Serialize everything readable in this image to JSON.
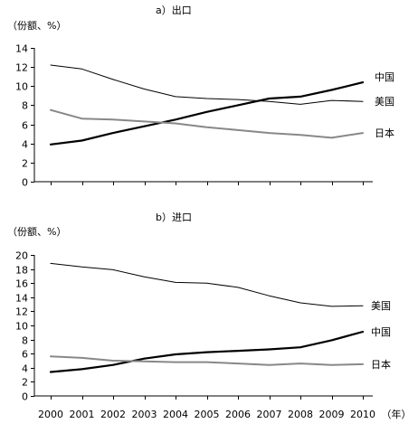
{
  "chart_data": [
    {
      "type": "line",
      "title": "a）出口",
      "ylabel": "（份额、%）",
      "ylim": [
        0,
        14
      ],
      "yticks": [
        "0",
        "2",
        "4",
        "6",
        "8",
        "10",
        "12",
        "14"
      ],
      "x": [
        2000,
        2001,
        2002,
        2003,
        2004,
        2005,
        2006,
        2007,
        2008,
        2009,
        2010
      ],
      "grid": false,
      "legend": "inline-right",
      "series": [
        {
          "name": "中国",
          "color": "#000000",
          "width": 2.2,
          "values": [
            3.9,
            4.3,
            5.1,
            5.8,
            6.5,
            7.3,
            8.0,
            8.7,
            8.9,
            9.6,
            10.4
          ]
        },
        {
          "name": "美国",
          "color": "#000000",
          "width": 1,
          "values": [
            12.2,
            11.8,
            10.7,
            9.7,
            8.9,
            8.7,
            8.6,
            8.4,
            8.1,
            8.5,
            8.4
          ]
        },
        {
          "name": "日本",
          "color": "#888888",
          "width": 2,
          "values": [
            7.5,
            6.6,
            6.5,
            6.3,
            6.1,
            5.7,
            5.4,
            5.1,
            4.9,
            4.6,
            5.1
          ]
        }
      ]
    },
    {
      "type": "line",
      "title": "b）进口",
      "ylabel": "（份额、%）",
      "ylim": [
        0,
        20
      ],
      "yticks": [
        "0",
        "2",
        "4",
        "6",
        "8",
        "10",
        "12",
        "14",
        "16",
        "18",
        "20"
      ],
      "x": [
        2000,
        2001,
        2002,
        2003,
        2004,
        2005,
        2006,
        2007,
        2008,
        2009,
        2010
      ],
      "xticks": [
        "2000",
        "2001",
        "2002",
        "2003",
        "2004",
        "2005",
        "2006",
        "2007",
        "2008",
        "2009",
        "2010"
      ],
      "xunit": "（年）",
      "grid": false,
      "legend": "inline-right",
      "series": [
        {
          "name": "美国",
          "color": "#000000",
          "width": 1,
          "values": [
            18.8,
            18.3,
            17.9,
            16.9,
            16.1,
            16.0,
            15.4,
            14.2,
            13.2,
            12.7,
            12.8
          ]
        },
        {
          "name": "中国",
          "color": "#000000",
          "width": 2.2,
          "values": [
            3.4,
            3.8,
            4.4,
            5.3,
            5.9,
            6.2,
            6.4,
            6.6,
            6.9,
            7.9,
            9.1
          ]
        },
        {
          "name": "日本",
          "color": "#888888",
          "width": 2,
          "values": [
            5.6,
            5.4,
            5.0,
            4.9,
            4.8,
            4.8,
            4.6,
            4.4,
            4.6,
            4.4,
            4.5
          ]
        }
      ]
    }
  ]
}
